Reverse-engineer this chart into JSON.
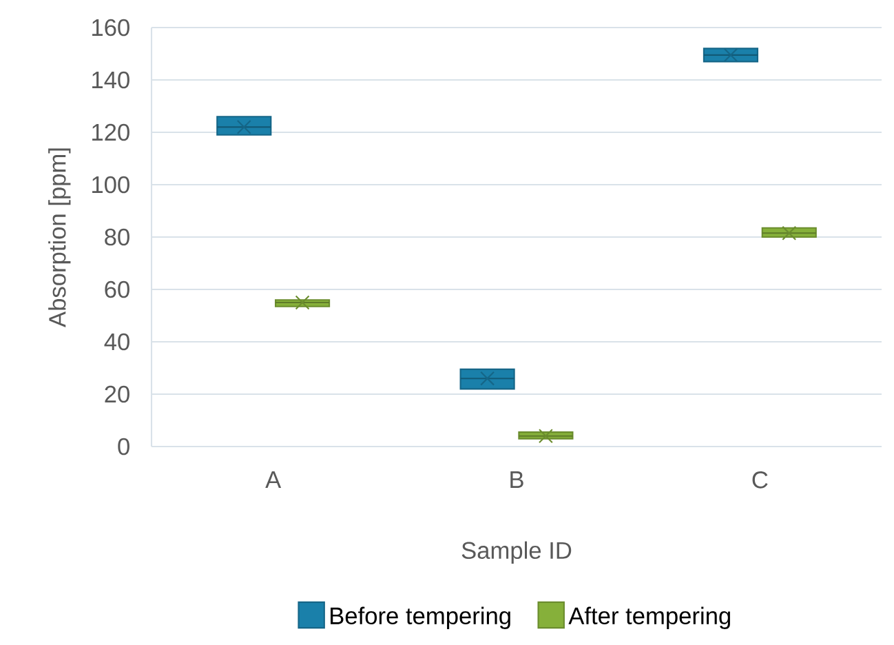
{
  "chart_data": {
    "type": "box",
    "xlabel": "Sample ID",
    "ylabel": "Absorption [ppm]",
    "categories": [
      "A",
      "B",
      "C"
    ],
    "series": [
      {
        "name": "Before tempering",
        "color": "#1a80aa",
        "boxes": [
          {
            "low": 119,
            "q1": 119,
            "median": 122,
            "q3": 126,
            "high": 126,
            "mean": 122
          },
          {
            "low": 22,
            "q1": 22,
            "median": 26,
            "q3": 29.5,
            "high": 29.5,
            "mean": 26
          },
          {
            "low": 147,
            "q1": 147,
            "median": 149.5,
            "q3": 152,
            "high": 152,
            "mean": 149.5
          }
        ]
      },
      {
        "name": "After tempering",
        "color": "#86b03a",
        "boxes": [
          {
            "low": 53.5,
            "q1": 53.5,
            "median": 55,
            "q3": 56,
            "high": 56,
            "mean": 55
          },
          {
            "low": 3,
            "q1": 3,
            "median": 4,
            "q3": 5.5,
            "high": 5.5,
            "mean": 4
          },
          {
            "low": 80,
            "q1": 80,
            "median": 81.5,
            "q3": 83.5,
            "high": 83.5,
            "mean": 81.5
          }
        ]
      }
    ],
    "ylim": [
      0,
      160
    ],
    "yticks": [
      0,
      20,
      40,
      60,
      80,
      100,
      120,
      140,
      160
    ],
    "grid": "y",
    "legend": "bottom"
  }
}
